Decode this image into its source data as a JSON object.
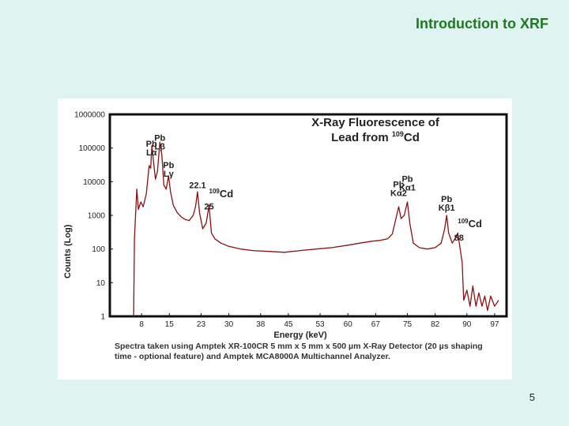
{
  "slide": {
    "title": "Introduction to XRF",
    "page_number": "5"
  },
  "caption": "Spectra taken using Amptek XR-100CR 5 mm x 5 mm x 500 µm X-Ray Detector (20 µs shaping time - optional feature) and Amptek  MCA8000A Multichannel Analyzer.",
  "colors": {
    "trace": "#8b1010",
    "title_green": "#1f7a1f",
    "background": "#dff4f1"
  },
  "chart_data": {
    "type": "line",
    "title_line1": "X-Ray Fluorescence of",
    "title_line2_pre": "Lead from ",
    "title_line2_sup": "109",
    "title_line2_post": "Cd",
    "xlabel": "Energy (keV)",
    "ylabel": "Counts (Log)",
    "y_scale": "log",
    "xlim": [
      0,
      100
    ],
    "ylim": [
      1,
      1000000
    ],
    "x_ticks": [
      "8",
      "15",
      "23",
      "30",
      "38",
      "45",
      "53",
      "60",
      "67",
      "75",
      "82",
      "90",
      "97"
    ],
    "y_ticks": [
      "1000000",
      "100000",
      "10000",
      "1000",
      "100",
      "10",
      "1"
    ],
    "annotations": [
      {
        "name": "pb-la",
        "lines": [
          "Pb",
          "Lα"
        ],
        "at": [
          10.5,
          60000
        ]
      },
      {
        "name": "pb-lb",
        "lines": [
          "Pb",
          "Lβ"
        ],
        "at": [
          12.6,
          90000
        ]
      },
      {
        "name": "pb-lg",
        "lines": [
          "Pb",
          "Lγ"
        ],
        "at": [
          14.8,
          14000
        ]
      },
      {
        "name": "peak-22",
        "lines": [
          "22.1"
        ],
        "at": [
          22.1,
          6500
        ]
      },
      {
        "name": "peak-25",
        "lines": [
          "25"
        ],
        "at": [
          25,
          1500
        ]
      },
      {
        "name": "cd-109-a",
        "sup": "109",
        "text": "Cd",
        "at": [
          25,
          3500
        ]
      },
      {
        "name": "pb-ka2",
        "lines": [
          "Pb",
          "Kα2"
        ],
        "at": [
          72.8,
          3800
        ]
      },
      {
        "name": "pb-ka1",
        "lines": [
          "Pb",
          "Kα1"
        ],
        "at": [
          75,
          5500
        ]
      },
      {
        "name": "pb-kb1",
        "lines": [
          "Pb",
          "Kβ1"
        ],
        "at": [
          84.9,
          1400
        ]
      },
      {
        "name": "cd-109-b",
        "sup": "109",
        "text": "Cd",
        "at": [
          87.7,
          450
        ]
      },
      {
        "name": "peak-88",
        "lines": [
          "88"
        ],
        "at": [
          88,
          180
        ]
      }
    ],
    "series": [
      {
        "points": [
          [
            6.0,
            1
          ],
          [
            6.2,
            200
          ],
          [
            6.8,
            6000
          ],
          [
            7.2,
            1500
          ],
          [
            7.8,
            2500
          ],
          [
            8.4,
            1800
          ],
          [
            9.2,
            4500
          ],
          [
            9.9,
            30000
          ],
          [
            10.3,
            25000
          ],
          [
            10.6,
            120000
          ],
          [
            11.0,
            40000
          ],
          [
            11.5,
            12000
          ],
          [
            12.0,
            20000
          ],
          [
            12.6,
            150000
          ],
          [
            13.1,
            60000
          ],
          [
            13.6,
            8000
          ],
          [
            14.2,
            6000
          ],
          [
            14.8,
            15000
          ],
          [
            15.3,
            5000
          ],
          [
            16.0,
            2000
          ],
          [
            17.0,
            1200
          ],
          [
            18.0,
            900
          ],
          [
            19.0,
            750
          ],
          [
            20.0,
            700
          ],
          [
            21.0,
            1000
          ],
          [
            21.6,
            1800
          ],
          [
            22.1,
            5000
          ],
          [
            22.6,
            1200
          ],
          [
            23.4,
            400
          ],
          [
            24.3,
            600
          ],
          [
            25.0,
            2000
          ],
          [
            25.6,
            300
          ],
          [
            26.5,
            200
          ],
          [
            28.0,
            150
          ],
          [
            30.0,
            120
          ],
          [
            33.0,
            100
          ],
          [
            36.0,
            90
          ],
          [
            40.0,
            85
          ],
          [
            44.0,
            80
          ],
          [
            48.0,
            90
          ],
          [
            52.0,
            100
          ],
          [
            56.0,
            110
          ],
          [
            60.0,
            130
          ],
          [
            63.0,
            150
          ],
          [
            66.0,
            170
          ],
          [
            68.0,
            180
          ],
          [
            70.0,
            200
          ],
          [
            71.2,
            280
          ],
          [
            72.0,
            700
          ],
          [
            72.8,
            1800
          ],
          [
            73.4,
            800
          ],
          [
            74.2,
            1000
          ],
          [
            75.0,
            2500
          ],
          [
            75.6,
            600
          ],
          [
            76.5,
            150
          ],
          [
            78.0,
            110
          ],
          [
            80.0,
            100
          ],
          [
            82.0,
            110
          ],
          [
            83.5,
            150
          ],
          [
            84.4,
            400
          ],
          [
            84.9,
            1000
          ],
          [
            85.4,
            300
          ],
          [
            86.3,
            150
          ],
          [
            87.2,
            220
          ],
          [
            87.7,
            300
          ],
          [
            88.2,
            120
          ],
          [
            88.8,
            40
          ],
          [
            89.2,
            3
          ],
          [
            90.0,
            6
          ],
          [
            90.8,
            2
          ],
          [
            91.5,
            8
          ],
          [
            92.3,
            2
          ],
          [
            93.0,
            5
          ],
          [
            93.8,
            2
          ],
          [
            94.5,
            4
          ],
          [
            95.2,
            1.5
          ],
          [
            96.0,
            4
          ],
          [
            97.0,
            2
          ],
          [
            98.0,
            3
          ]
        ]
      }
    ]
  }
}
